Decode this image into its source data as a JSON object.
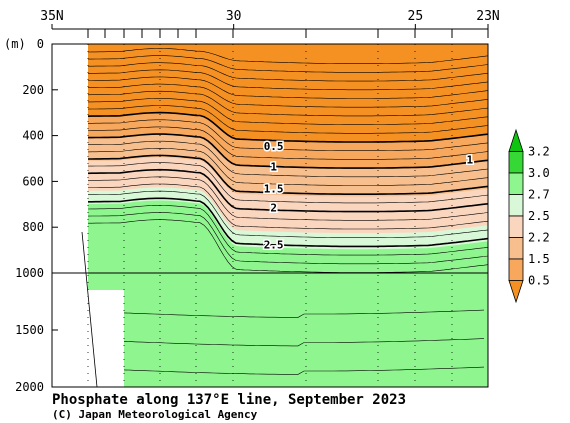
{
  "chart_data": {
    "type": "contour",
    "title": "Phosphate along 137°E line, September 2023",
    "credit": "(C) Japan Meteorological Agency",
    "ylabel": "(m)",
    "x_ticks": [
      "35N",
      "30",
      "25",
      "23N"
    ],
    "x_tick_values": [
      35,
      30,
      25,
      23
    ],
    "x_range": [
      35,
      23
    ],
    "y_range": [
      0,
      2000
    ],
    "y_scale": "piecewise (0–1000 m expanded, 1000–2000 m compressed)",
    "y_ticks": [
      0,
      200,
      400,
      600,
      800,
      1000,
      1500,
      2000
    ],
    "colorbar": {
      "labels": [
        "0.5",
        "1.5",
        "2.2",
        "2.5",
        "2.7",
        "3.0",
        "3.2"
      ],
      "levels": [
        0.5,
        1.5,
        2.2,
        2.5,
        2.7,
        3.0,
        3.2
      ],
      "colors": [
        "#f59122",
        "#f7a85c",
        "#f8bf8e",
        "#fbd6bf",
        "#d8f8d8",
        "#8ff58f",
        "#36d836",
        "#0ec40e"
      ]
    },
    "contour_labels": [
      {
        "text": "0.5",
        "lat": 28.9,
        "depth": 445
      },
      {
        "text": "1",
        "lat": 28.9,
        "depth": 535
      },
      {
        "text": "1",
        "lat": 23.5,
        "depth": 505
      },
      {
        "text": "1.5",
        "lat": 28.9,
        "depth": 630
      },
      {
        "text": "2",
        "lat": 28.9,
        "depth": 715
      },
      {
        "text": "2.5",
        "lat": 28.9,
        "depth": 875
      }
    ],
    "sea_floor": {
      "lat": 34.5,
      "depth_top": 1080
    }
  }
}
